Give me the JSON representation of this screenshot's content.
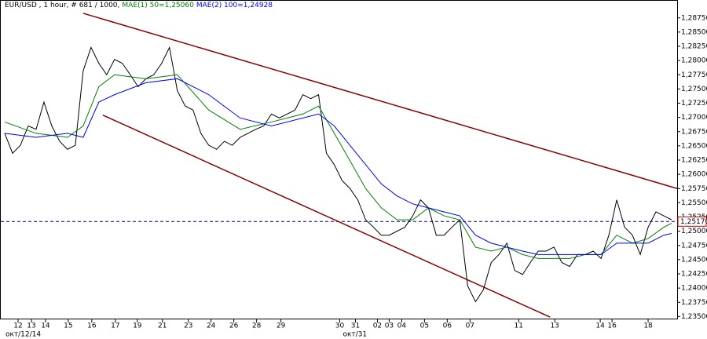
{
  "chart_data": {
    "type": "line",
    "title": "EUR/USD , 1 hour, # 681 / 1000,",
    "xlim": [
      0,
      862
    ],
    "ylim": [
      1.2345,
      1.2905
    ],
    "yticks": [
      {
        "value": 1.2875,
        "label": "1,28750"
      },
      {
        "value": 1.285,
        "label": "1,28500"
      },
      {
        "value": 1.2825,
        "label": "1,28250"
      },
      {
        "value": 1.28,
        "label": "1,28000"
      },
      {
        "value": 1.2775,
        "label": "1,27750"
      },
      {
        "value": 1.275,
        "label": "1,27500"
      },
      {
        "value": 1.2725,
        "label": "1,27250"
      },
      {
        "value": 1.27,
        "label": "1,27000"
      },
      {
        "value": 1.2675,
        "label": "1,26750"
      },
      {
        "value": 1.265,
        "label": "1,26500"
      },
      {
        "value": 1.2625,
        "label": "1,26250"
      },
      {
        "value": 1.26,
        "label": "1,26000"
      },
      {
        "value": 1.2575,
        "label": "1,25750"
      },
      {
        "value": 1.255,
        "label": "1,25500"
      },
      {
        "value": 1.2525,
        "label": "1,25250"
      },
      {
        "value": 1.25,
        "label": "1,25000"
      },
      {
        "value": 1.2475,
        "label": "1,24750"
      },
      {
        "value": 1.245,
        "label": "1,24500"
      },
      {
        "value": 1.2425,
        "label": "1,24250"
      },
      {
        "value": 1.24,
        "label": "1,24000"
      },
      {
        "value": 1.2375,
        "label": "1,23750"
      },
      {
        "value": 1.235,
        "label": "1,23500"
      }
    ],
    "xticks": [
      {
        "value": 22,
        "label": "12"
      },
      {
        "value": 39,
        "label": "13"
      },
      {
        "value": 57,
        "label": "14"
      },
      {
        "value": 86,
        "label": "15"
      },
      {
        "value": 116,
        "label": "16"
      },
      {
        "value": 146,
        "label": "17"
      },
      {
        "value": 174,
        "label": "19"
      },
      {
        "value": 206,
        "label": "21"
      },
      {
        "value": 239,
        "label": "23"
      },
      {
        "value": 268,
        "label": "24"
      },
      {
        "value": 297,
        "label": "26"
      },
      {
        "value": 326,
        "label": "28"
      },
      {
        "value": 357,
        "label": "29"
      },
      {
        "value": 432,
        "label": "30"
      },
      {
        "value": 452,
        "label": "31"
      },
      {
        "value": 480,
        "label": "02"
      },
      {
        "value": 495,
        "label": "03"
      },
      {
        "value": 511,
        "label": "04"
      },
      {
        "value": 540,
        "label": "05"
      },
      {
        "value": 569,
        "label": "06"
      },
      {
        "value": 598,
        "label": "07"
      },
      {
        "value": 660,
        "label": "11"
      },
      {
        "value": 706,
        "label": "13"
      },
      {
        "value": 764,
        "label": "14"
      },
      {
        "value": 779,
        "label": "16"
      },
      {
        "value": 825,
        "label": "18"
      }
    ],
    "xlabels2": [
      {
        "value": 22,
        "label": "окт/12/14"
      },
      {
        "value": 452,
        "label": "окт/31"
      }
    ],
    "series": [
      {
        "name": "EUR/USD",
        "color": "#000000",
        "x": [
          5,
          15,
          25,
          35,
          45,
          55,
          65,
          75,
          85,
          95,
          105,
          115,
          125,
          135,
          145,
          155,
          165,
          175,
          185,
          195,
          205,
          215,
          225,
          235,
          245,
          255,
          265,
          275,
          285,
          295,
          305,
          315,
          325,
          335,
          345,
          355,
          365,
          375,
          385,
          395,
          405,
          415,
          425,
          435,
          445,
          455,
          465,
          475,
          485,
          495,
          505,
          515,
          525,
          535,
          545,
          555,
          565,
          575,
          585,
          595,
          605,
          615,
          625,
          635,
          645,
          655,
          665,
          675,
          685,
          695,
          705,
          715,
          725,
          735,
          745,
          755,
          765,
          775,
          785,
          795,
          805,
          815,
          825,
          835,
          845,
          855
        ],
        "values": [
          1.2672,
          1.2637,
          1.2651,
          1.2685,
          1.2679,
          1.2727,
          1.2685,
          1.2658,
          1.2644,
          1.2651,
          1.2782,
          1.2823,
          1.2795,
          1.2775,
          1.2802,
          1.2795,
          1.2775,
          1.2754,
          1.2768,
          1.2775,
          1.2795,
          1.2823,
          1.2747,
          1.272,
          1.2713,
          1.2672,
          1.2651,
          1.2644,
          1.2658,
          1.2651,
          1.2665,
          1.2672,
          1.2679,
          1.2685,
          1.2706,
          1.2699,
          1.2706,
          1.2713,
          1.274,
          1.2733,
          1.274,
          1.2637,
          1.2617,
          1.2589,
          1.2575,
          1.2555,
          1.252,
          1.2507,
          1.2493,
          1.2493,
          1.25,
          1.2507,
          1.2527,
          1.2555,
          1.2541,
          1.2493,
          1.2493,
          1.2507,
          1.252,
          1.2404,
          1.2376,
          1.2397,
          1.2445,
          1.2459,
          1.2479,
          1.2431,
          1.2424,
          1.2445,
          1.2465,
          1.2465,
          1.2472,
          1.2445,
          1.2438,
          1.2459,
          1.2459,
          1.2465,
          1.2452,
          1.2493,
          1.2555,
          1.2507,
          1.2493,
          1.2459,
          1.2507,
          1.2534,
          1.2527,
          1.252
        ]
      },
      {
        "name": "MAE(1) 50=1,25060",
        "color": "#008000",
        "x": [
          5,
          45,
          85,
          105,
          125,
          145,
          185,
          225,
          265,
          305,
          345,
          385,
          405,
          425,
          445,
          465,
          485,
          505,
          525,
          545,
          565,
          585,
          605,
          625,
          645,
          665,
          685,
          705,
          725,
          745,
          765,
          785,
          805,
          825,
          845,
          855
        ],
        "values": [
          1.2692,
          1.2672,
          1.2665,
          1.2685,
          1.2754,
          1.2775,
          1.2768,
          1.2775,
          1.2713,
          1.2679,
          1.2692,
          1.2706,
          1.272,
          1.2672,
          1.2624,
          1.2575,
          1.2541,
          1.252,
          1.252,
          1.2541,
          1.2527,
          1.252,
          1.2472,
          1.2465,
          1.2472,
          1.2459,
          1.2452,
          1.2452,
          1.2452,
          1.2459,
          1.2459,
          1.2493,
          1.2479,
          1.2487,
          1.2507,
          1.2514
        ]
      },
      {
        "name": "MAE(2) 100=1,24928",
        "color": "#0000ff",
        "x": [
          5,
          45,
          85,
          105,
          125,
          145,
          185,
          225,
          265,
          305,
          345,
          385,
          405,
          425,
          445,
          465,
          485,
          505,
          525,
          545,
          565,
          585,
          605,
          625,
          645,
          665,
          685,
          705,
          725,
          745,
          765,
          785,
          805,
          825,
          845,
          855
        ],
        "values": [
          1.2672,
          1.2665,
          1.2672,
          1.2665,
          1.2727,
          1.274,
          1.2761,
          1.2768,
          1.274,
          1.2699,
          1.2685,
          1.2699,
          1.2706,
          1.2685,
          1.2651,
          1.2617,
          1.2583,
          1.2562,
          1.2548,
          1.2541,
          1.2534,
          1.2527,
          1.2493,
          1.2479,
          1.2472,
          1.2465,
          1.2459,
          1.2459,
          1.2459,
          1.2459,
          1.2459,
          1.2479,
          1.2479,
          1.2479,
          1.2493,
          1.2496
        ]
      }
    ],
    "trendlines": [
      {
        "color": "#8b0000",
        "x": [
          105,
          862
        ],
        "values": [
          1.2883,
          1.2575
        ]
      },
      {
        "color": "#8b0000",
        "x": [
          130,
          700
        ],
        "values": [
          1.2704,
          1.2349
        ]
      }
    ],
    "current_price": {
      "value": 1.2517,
      "label": "1,25170",
      "color": "#c00000"
    }
  }
}
